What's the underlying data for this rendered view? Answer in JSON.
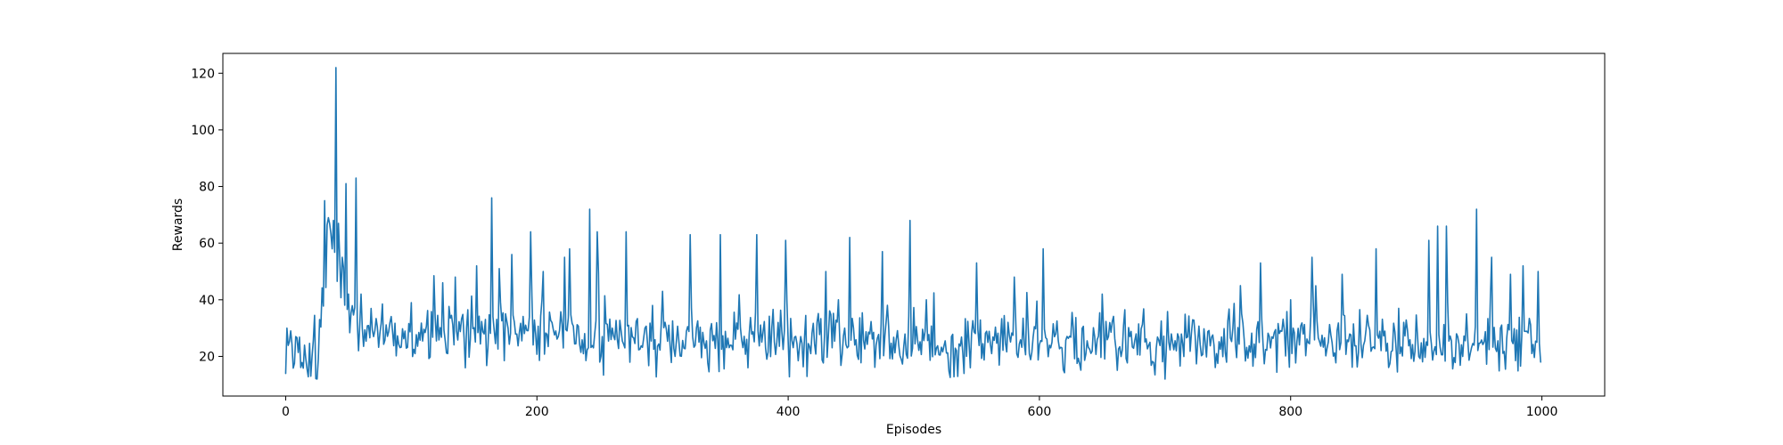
{
  "chart_data": {
    "type": "line",
    "title": "",
    "xlabel": "Episodes",
    "ylabel": "Rewards",
    "xlim": [
      -50,
      1050
    ],
    "ylim": [
      6,
      127
    ],
    "xticks": [
      0,
      200,
      400,
      600,
      800,
      1000
    ],
    "yticks": [
      20,
      40,
      60,
      80,
      100,
      120
    ],
    "grid": false,
    "legend": "none",
    "series": [
      {
        "color": "#1f77b4",
        "num_points": 1000,
        "x_start": 0,
        "x_step": 1,
        "seed": 12345,
        "baseline": [
          [
            0,
            20
          ],
          [
            25,
            20
          ],
          [
            28,
            40
          ],
          [
            35,
            55
          ],
          [
            40,
            50
          ],
          [
            50,
            38
          ],
          [
            60,
            28
          ],
          [
            100,
            25
          ],
          [
            150,
            30
          ],
          [
            200,
            28
          ],
          [
            300,
            26
          ],
          [
            400,
            26
          ],
          [
            600,
            24
          ],
          [
            800,
            25
          ],
          [
            1000,
            24
          ]
        ],
        "noise": [
          [
            0,
            4
          ],
          [
            30,
            14
          ],
          [
            60,
            6
          ],
          [
            100,
            8
          ],
          [
            150,
            11
          ],
          [
            250,
            10
          ],
          [
            400,
            10
          ],
          [
            700,
            9
          ],
          [
            1000,
            10
          ]
        ],
        "peaks": [
          [
            0,
            14
          ],
          [
            1,
            30
          ],
          [
            4,
            29
          ],
          [
            8,
            27
          ],
          [
            20,
            13
          ],
          [
            27,
            33
          ],
          [
            31,
            75
          ],
          [
            34,
            69
          ],
          [
            37,
            58
          ],
          [
            38,
            68
          ],
          [
            40,
            122
          ],
          [
            42,
            67
          ],
          [
            45,
            55
          ],
          [
            48,
            81
          ],
          [
            50,
            42
          ],
          [
            56,
            83
          ],
          [
            58,
            22
          ],
          [
            60,
            42
          ],
          [
            100,
            39
          ],
          [
            125,
            46
          ],
          [
            135,
            48
          ],
          [
            143,
            16
          ],
          [
            152,
            52
          ],
          [
            164,
            76
          ],
          [
            170,
            51
          ],
          [
            180,
            56
          ],
          [
            195,
            64
          ],
          [
            205,
            50
          ],
          [
            222,
            55
          ],
          [
            226,
            58
          ],
          [
            242,
            72
          ],
          [
            248,
            64
          ],
          [
            250,
            18
          ],
          [
            260,
            30
          ],
          [
            271,
            64
          ],
          [
            300,
            43
          ],
          [
            310,
            20
          ],
          [
            322,
            63
          ],
          [
            346,
            63
          ],
          [
            375,
            63
          ],
          [
            398,
            61
          ],
          [
            430,
            50
          ],
          [
            440,
            40
          ],
          [
            449,
            62
          ],
          [
            475,
            57
          ],
          [
            497,
            68
          ],
          [
            510,
            40
          ],
          [
            540,
            14
          ],
          [
            550,
            53
          ],
          [
            580,
            48
          ],
          [
            603,
            58
          ],
          [
            610,
            25
          ],
          [
            650,
            42
          ],
          [
            700,
            12
          ],
          [
            760,
            45
          ],
          [
            776,
            53
          ],
          [
            800,
            40
          ],
          [
            817,
            55
          ],
          [
            841,
            49
          ],
          [
            868,
            58
          ],
          [
            910,
            61
          ],
          [
            917,
            66
          ],
          [
            924,
            66
          ],
          [
            948,
            72
          ],
          [
            960,
            55
          ],
          [
            975,
            49
          ],
          [
            985,
            52
          ],
          [
            997,
            50
          ],
          [
            999,
            18
          ]
        ]
      }
    ]
  }
}
